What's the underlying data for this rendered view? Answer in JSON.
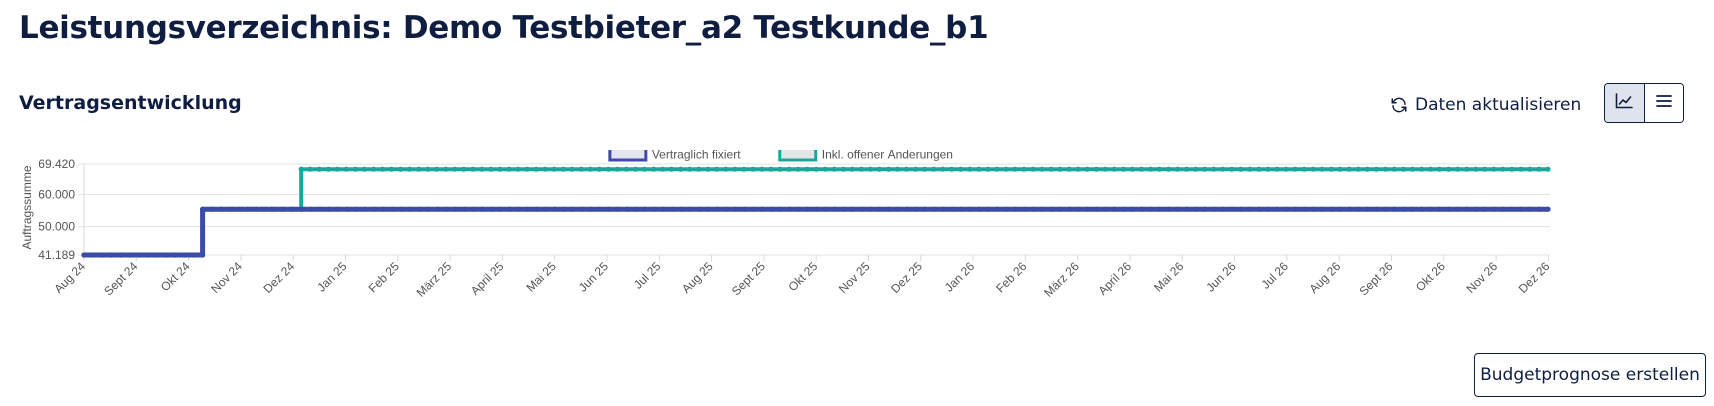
{
  "header": {
    "title": "Leistungsverzeichnis: Demo Testbieter_a2 Testkunde_b1"
  },
  "section": {
    "title": "Vertragsentwicklung"
  },
  "toolbar": {
    "refresh_label": "Daten aktualisieren",
    "refresh_icon": "refresh-icon",
    "view_chart_icon": "line-chart-icon",
    "view_list_icon": "list-icon",
    "active_view": "chart"
  },
  "actions": {
    "budget_label": "Budgetprognose erstellen"
  },
  "chart_data": {
    "type": "line",
    "title": "",
    "xlabel": "",
    "ylabel": "Auftragssumme",
    "x": [
      "Aug 24",
      "Sept 24",
      "Okt 24",
      "Nov 24",
      "Dez 24",
      "Jan 25",
      "Feb 25",
      "März 25",
      "April 25",
      "Mai 25",
      "Jun 25",
      "Jul 25",
      "Aug 25",
      "Sept 25",
      "Okt 25",
      "Nov 25",
      "Dez 25",
      "Jan 26",
      "Feb 26",
      "März 26",
      "April 26",
      "Mai 26",
      "Jun 26",
      "Jul 26",
      "Aug 26",
      "Sept 26",
      "Okt 26",
      "Nov 26",
      "Dez 26"
    ],
    "y_ticks": [
      "41.189",
      "50.000",
      "60.000",
      "69.420"
    ],
    "ylim": [
      41189,
      69420
    ],
    "stepped": true,
    "grid": true,
    "legend_position": "top-center",
    "series": [
      {
        "name": "Vertraglich fixiert",
        "color": "#3b4ba8",
        "fill": "#e4e5ef",
        "steps": [
          {
            "x": "Aug 24",
            "y": 41189
          },
          {
            "x": "Okt 24",
            "y": 41189
          },
          {
            "x": "Okt 24",
            "y": 55400
          },
          {
            "x": "Dez 26",
            "y": 55400
          }
        ]
      },
      {
        "name": "Inkl. offener Änderungen",
        "color": "#18a89b",
        "fill": "#e2e6e6",
        "steps": [
          {
            "x": "Aug 24",
            "y": 41189
          },
          {
            "x": "Okt 24",
            "y": 41189
          },
          {
            "x": "Okt 24",
            "y": 55400
          },
          {
            "x": "Dez 24",
            "y": 55400
          },
          {
            "x": "Dez 24",
            "y": 67800
          },
          {
            "x": "Dez 26",
            "y": 67800
          }
        ]
      }
    ]
  }
}
